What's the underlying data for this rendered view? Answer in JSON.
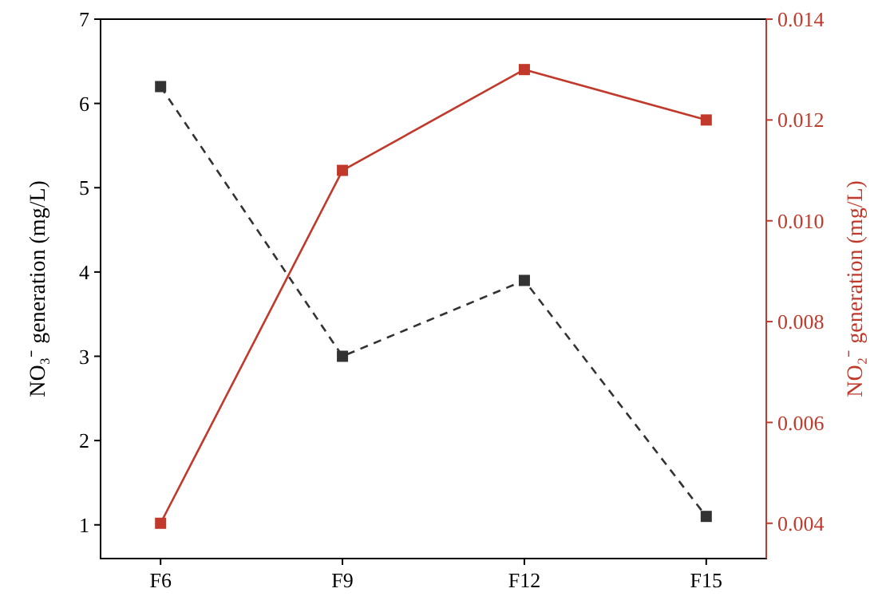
{
  "chart_data": {
    "type": "line",
    "categories": [
      "F6",
      "F9",
      "F12",
      "F15"
    ],
    "ylabel": "NO₃⁻ generation (mg/L)",
    "y2label": "NO₂⁻ generation (mg/L)",
    "ylim": [
      0.6,
      7
    ],
    "yticks": [
      1,
      2,
      3,
      4,
      5,
      6,
      7
    ],
    "y2lim": [
      0.0033,
      0.014
    ],
    "y2ticks": [
      0.004,
      0.006,
      0.008,
      {
        "value": 0.01,
        "label": "0.010"
      },
      0.012,
      0.014
    ],
    "marker": "square",
    "grid": false,
    "series": [
      {
        "color": "#333333",
        "line_style": "dashed",
        "values": [
          6.2,
          3.0,
          3.9,
          1.1
        ]
      },
      {
        "color": "#c0392b",
        "line_style": "solid",
        "axis": "y2",
        "values": [
          0.004,
          0.011,
          0.013,
          0.012
        ]
      }
    ]
  }
}
